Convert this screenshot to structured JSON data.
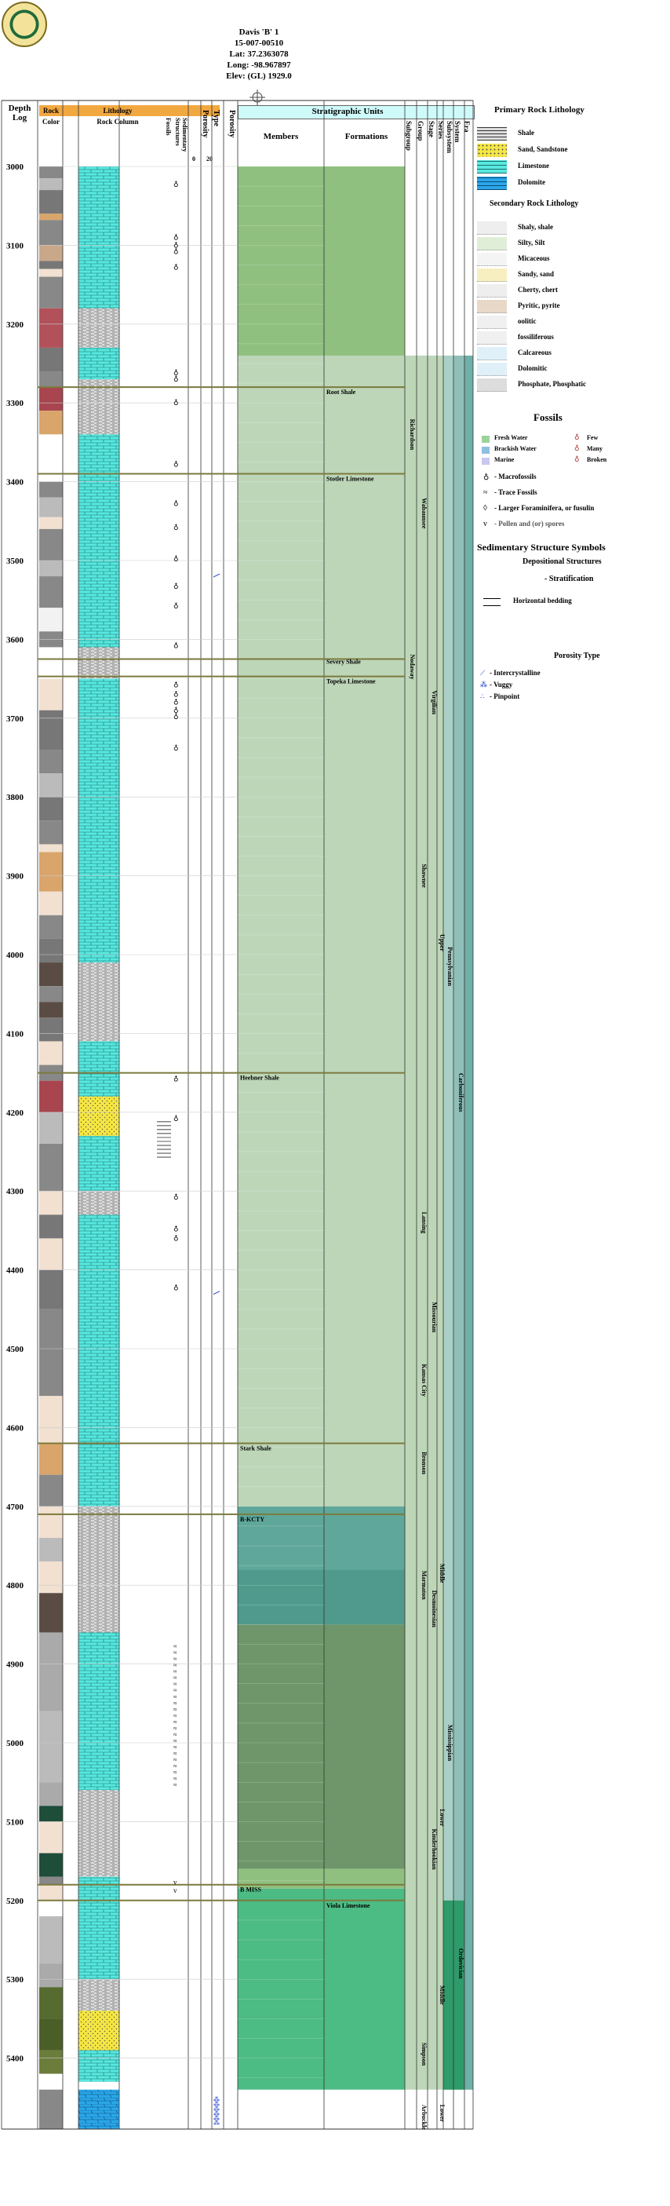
{
  "header": {
    "well_name": "Davis 'B' 1",
    "api": "15-007-00510",
    "lat": "Lat: 37.2363078",
    "long": "Long: -98.967897",
    "elev": "Elev: (GL) 1929.0"
  },
  "columns": {
    "depth_log": "Depth Log",
    "rock": "Rock",
    "color": "Color",
    "lithology": "Lithology",
    "rock_column": "Rock Column",
    "fossils": "Fossils",
    "sedimentary_structures": "Sedimentary Structures",
    "porosity": "Porosity",
    "type": "Type",
    "porosity_scale_0": "0",
    "porosity_scale_20": "20",
    "porosity2": "Porosity",
    "strat_units": "Stratigraphic Units",
    "members": "Members",
    "formations": "Formations",
    "subgroup": "Subgroup",
    "group": "Group",
    "stage": "Stage",
    "series": "Series",
    "subsystem": "Subsystem",
    "system": "System",
    "era": "Era"
  },
  "depths": [
    "3000",
    "3100",
    "3200",
    "3300",
    "3400",
    "3500",
    "3600",
    "3700",
    "3800",
    "3900",
    "4000",
    "4100",
    "4200",
    "4300",
    "4400",
    "4500",
    "4600",
    "4700",
    "4800",
    "4900",
    "5000",
    "5100",
    "5200",
    "5300",
    "5400"
  ],
  "members": [
    {
      "name": "Root Shale",
      "depth": 3280
    },
    {
      "name": "Stotler Limestone",
      "depth": 3390
    },
    {
      "name": "Severy Shale",
      "depth": 3625
    },
    {
      "name": "Topeka Limestone",
      "depth": 3647
    },
    {
      "name": "Heebner Shale",
      "depth": 4150
    },
    {
      "name": "Stark Shale",
      "depth": 4620
    },
    {
      "name": "B-KCTY",
      "depth": 4710
    },
    {
      "name": "B MISS",
      "depth": 5180
    },
    {
      "name": "Viola Limestone",
      "depth": 5200
    }
  ],
  "formations_vertical": [
    {
      "name": "Richardson",
      "col": "subgroup",
      "top": 3310,
      "bot": 3370
    },
    {
      "name": "Wabaunsee",
      "col": "group",
      "top": 3400,
      "bot": 3480
    },
    {
      "name": "Nodaway",
      "col": "subgroup",
      "top": 3610,
      "bot": 3660
    },
    {
      "name": "Virgilian",
      "col": "stage",
      "top": 3640,
      "bot": 3720
    },
    {
      "name": "Shawnee",
      "col": "group",
      "top": 3870,
      "bot": 3930
    },
    {
      "name": "Upper",
      "col": "series",
      "top": 3960,
      "bot": 4010
    },
    {
      "name": "Pennsylvanian",
      "col": "subsystem",
      "top": 3970,
      "bot": 4060
    },
    {
      "name": "Carboniferous",
      "col": "system",
      "top": 4120,
      "bot": 4230
    },
    {
      "name": "Lansing",
      "col": "group",
      "top": 4310,
      "bot": 4370
    },
    {
      "name": "Missourian",
      "col": "stage",
      "top": 4420,
      "bot": 4500
    },
    {
      "name": "Kansas City",
      "col": "group",
      "top": 4500,
      "bot": 4580
    },
    {
      "name": "Bronson",
      "col": "group",
      "top": 4620,
      "bot": 4670
    },
    {
      "name": "Middle",
      "col": "series",
      "top": 4770,
      "bot": 4800
    },
    {
      "name": "Desmoinesian",
      "col": "stage",
      "top": 4800,
      "bot": 4860
    },
    {
      "name": "Marmaton",
      "col": "group",
      "top": 4770,
      "bot": 4830
    },
    {
      "name": "Mississippian",
      "col": "subsystem",
      "top": 4960,
      "bot": 5040
    },
    {
      "name": "Lower",
      "col": "series",
      "top": 5080,
      "bot": 5110
    },
    {
      "name": "Kinderhookian",
      "col": "stage",
      "top": 5100,
      "bot": 5170
    },
    {
      "name": "Ordovician",
      "col": "system",
      "top": 5240,
      "bot": 5320
    },
    {
      "name": "Middle",
      "col": "series",
      "top": 5300,
      "bot": 5340
    },
    {
      "name": "Simpson",
      "col": "group",
      "top": 5370,
      "bot": 5420
    },
    {
      "name": "Arbuckle",
      "col": "group",
      "top": 5460,
      "bot": 5490
    },
    {
      "name": "Lower",
      "col": "series",
      "top": 5460,
      "bot": 5480
    }
  ],
  "legend": {
    "primary_title": "Primary Rock Lithology",
    "primary": [
      "Shale",
      "Sand, Sandstone",
      "Limestone",
      "Dolomite"
    ],
    "secondary_title": "Secondary Rock Lithology",
    "secondary": [
      "Shaly, shale",
      "Silty, Silt",
      "Micaceous",
      "Sandy, sand",
      "Cherty, chert",
      "Pyritic, pyrite",
      "oolitic",
      "fossiliferous",
      "Calcareous",
      "Dolomitic",
      "Phosphate, Phosphatic"
    ],
    "fossils_title": "Fossils",
    "fossil_env": [
      "Fresh Water",
      "Brackish Water",
      "Marine"
    ],
    "fossil_abund": [
      "Few",
      "Many",
      "Broken"
    ],
    "fossil_types": [
      "- Macrofossils",
      "- Trace Fossils",
      "- Larger Foraminifera, or fusulin",
      "- Pollen and (or) spores"
    ],
    "sed_title": "Sedimentary Structure Symbols",
    "dep_title": "Depositional Structures",
    "strat_title": "- Stratification",
    "horiz": "Horizontal bedding",
    "porosity_title": "Porosity Type",
    "porosity_types": [
      "- Intercrystalline",
      "- Vuggy",
      "- Pinpoint"
    ]
  },
  "colors": {
    "limestone": "#57e8e0",
    "dolomite": "#2aa6e8",
    "sand": "#f5e642",
    "shale": "#bdbdbd",
    "header_orange": "#f2a840",
    "header_cyan": "#cffafa",
    "strat_light": "#bdd6b8",
    "strat_green": "#8fc07f",
    "strat_teal": "#5fa79a",
    "strat_dark": "#6e966a",
    "strat_bright": "#4cbb84",
    "marker_line": "#7b7a3e"
  }
}
